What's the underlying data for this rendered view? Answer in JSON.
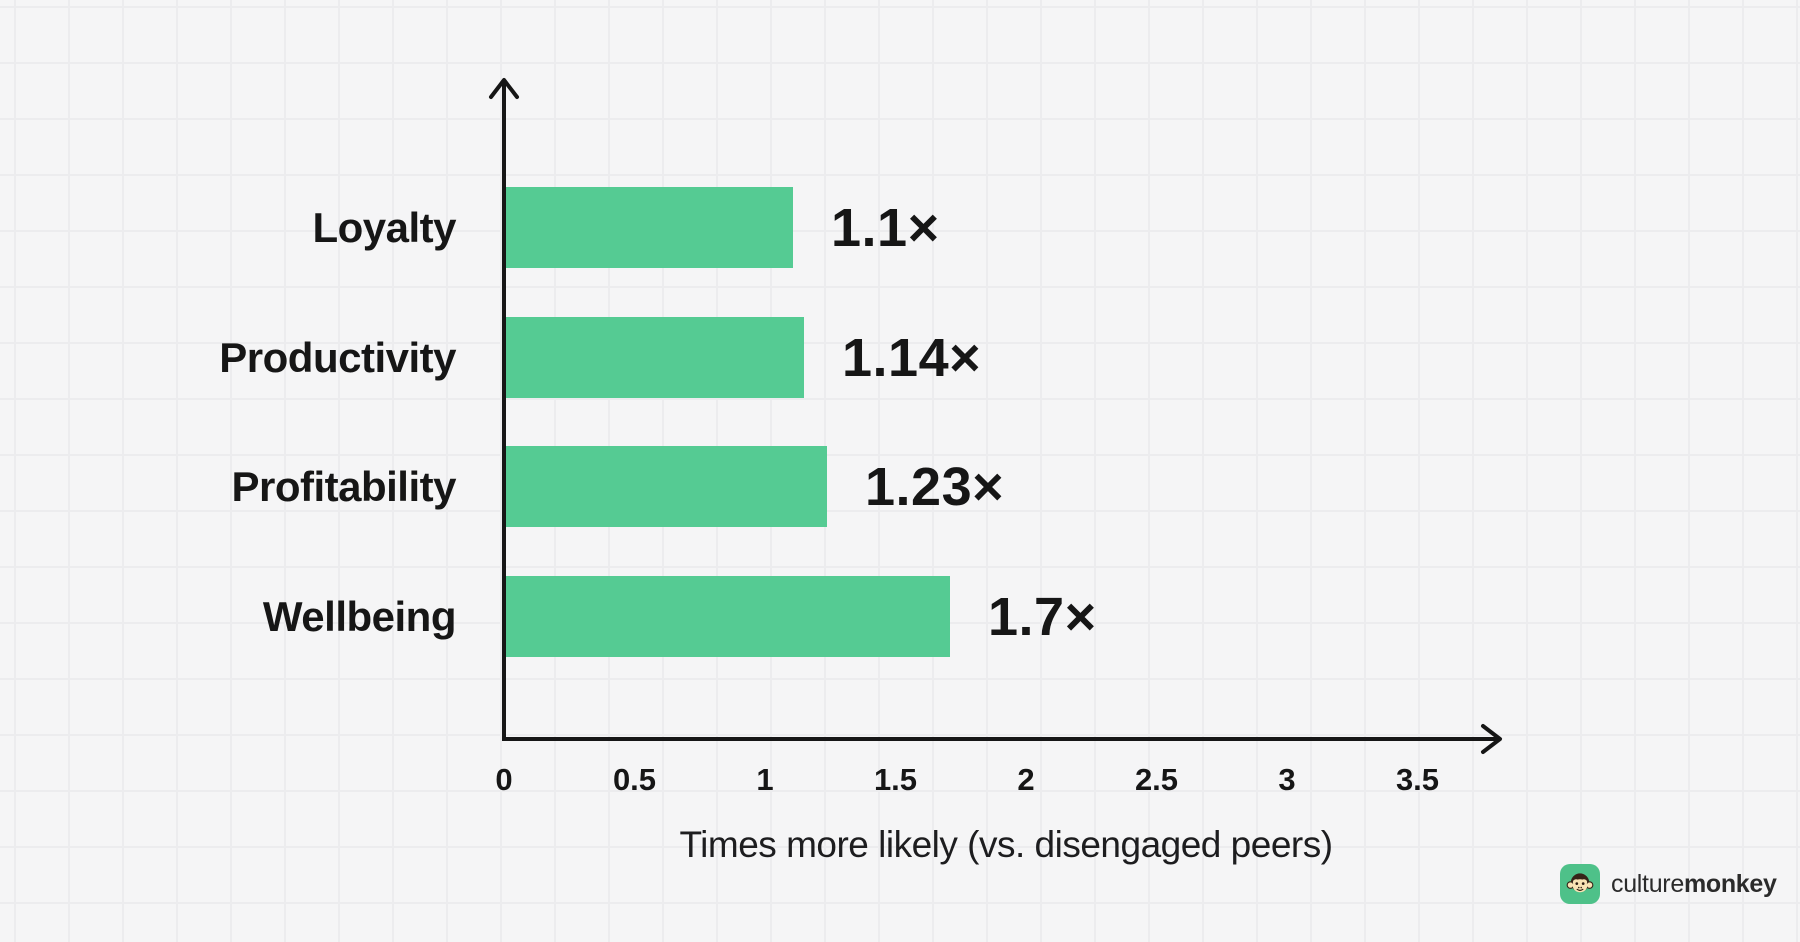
{
  "chart_data": {
    "type": "bar",
    "orientation": "horizontal",
    "title": "",
    "categories": [
      "Loyalty",
      "Productivity",
      "Profitability",
      "Wellbeing"
    ],
    "values": [
      1.1,
      1.14,
      1.23,
      1.7
    ],
    "value_labels": [
      "1.1×",
      "1.14×",
      "1.23×",
      "1.7×"
    ],
    "xlabel": "Times more likely (vs. disengaged peers)",
    "ylabel": "",
    "x_ticks": [
      "0",
      "0.5",
      "1",
      "1.5",
      "2",
      "2.5",
      "3",
      "3.5"
    ],
    "x_tick_values": [
      0,
      0.5,
      1,
      1.5,
      2,
      2.5,
      3,
      3.5
    ],
    "xlim": [
      0,
      3.85
    ],
    "grid": true,
    "legend": false,
    "bar_color": "#55CB93"
  },
  "branding": {
    "logo_icon": "monkey-icon",
    "logo_text_regular": "culture",
    "logo_text_bold": "monkey",
    "logo_bg_color": "#4EC189"
  },
  "colors": {
    "background": "#f5f5f6",
    "grid_line": "#ececee",
    "axis": "#161616",
    "text": "#161616",
    "bar": "#55CB93"
  }
}
